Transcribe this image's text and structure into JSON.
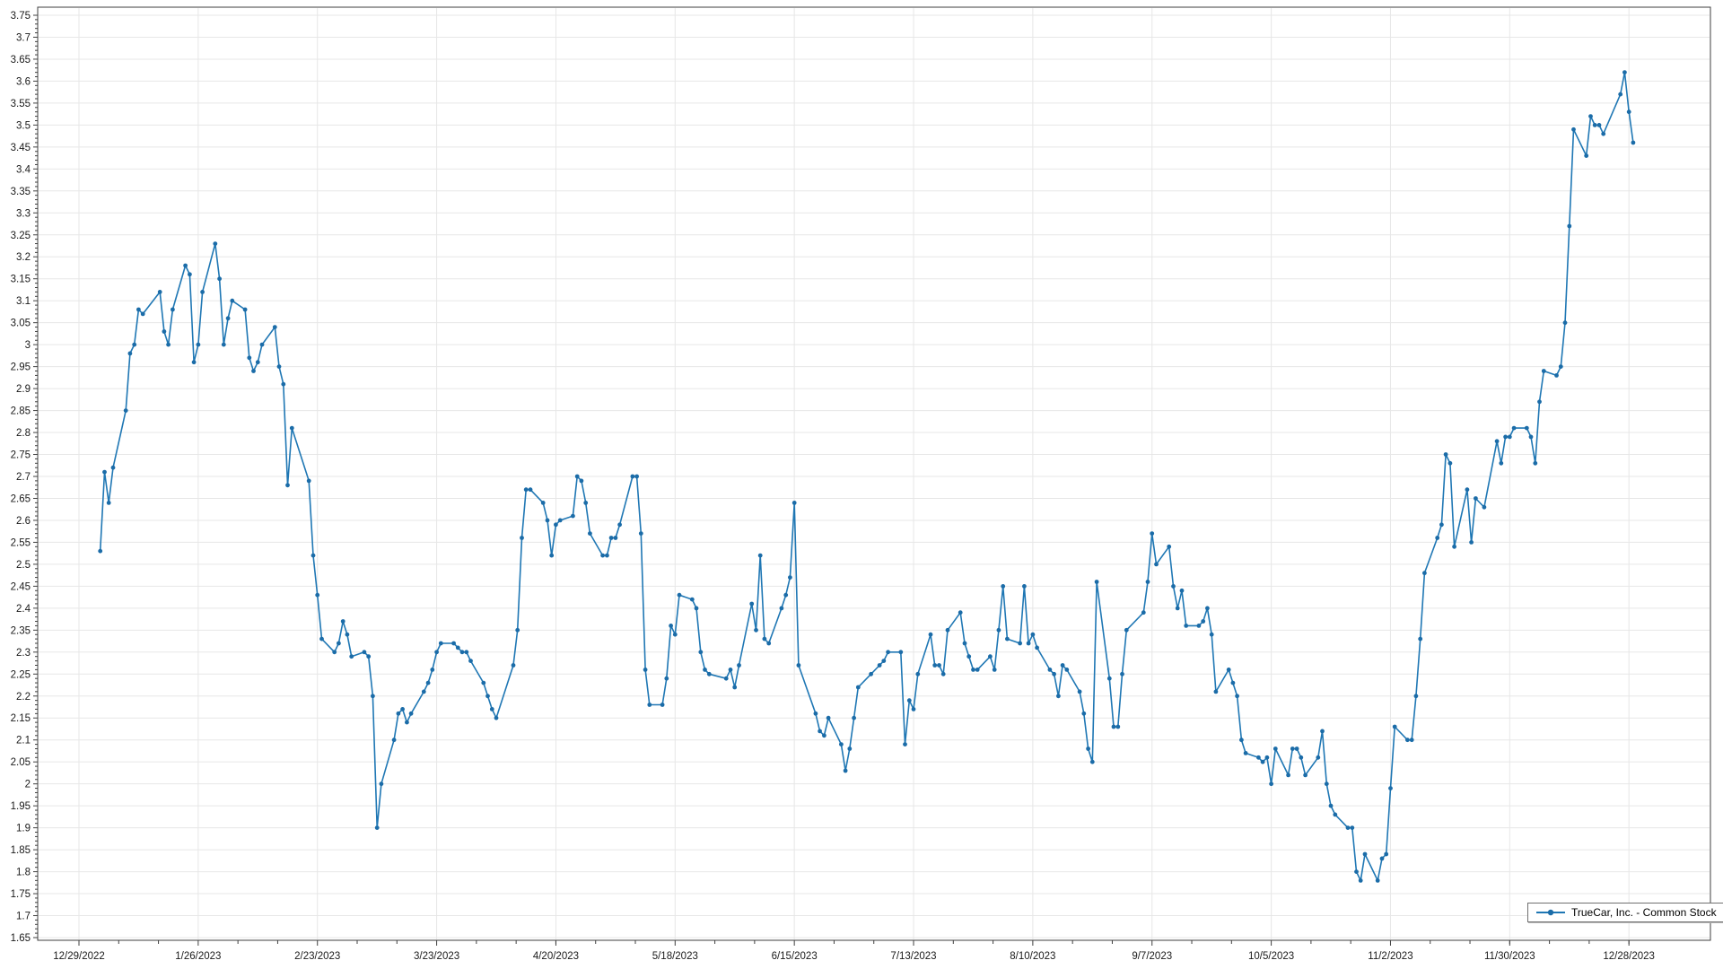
{
  "chart_data": {
    "type": "line",
    "title": "",
    "series_name": "TrueCar, Inc. - Common Stock",
    "legend_position": "bottom-right",
    "grid": true,
    "y_axis": {
      "min": 1.65,
      "max": 3.75,
      "major_step": 0.05,
      "minor_step": 0.01,
      "tick_labels": [
        "3.75",
        "3.7",
        "3.65",
        "3.6",
        "3.55",
        "3.5",
        "3.45",
        "3.4",
        "3.35",
        "3.3",
        "3.25",
        "3.2",
        "3.15",
        "3.1",
        "3.05",
        "3",
        "2.95",
        "2.9",
        "2.85",
        "2.8",
        "2.75",
        "2.7",
        "2.65",
        "2.6",
        "2.55",
        "2.5",
        "2.45",
        "2.4",
        "2.35",
        "2.3",
        "2.25",
        "2.2",
        "2.15",
        "2.1",
        "2.05",
        "2",
        "1.95",
        "1.9",
        "1.85",
        "1.8",
        "1.75",
        "1.7",
        "1.65"
      ]
    },
    "x_axis": {
      "unit": "days since 12/29/2022, weekdays only plotted",
      "ticks": [
        {
          "day": 0,
          "label": "12/29/2022"
        },
        {
          "day": 28,
          "label": "1/26/2023"
        },
        {
          "day": 56,
          "label": "2/23/2023"
        },
        {
          "day": 84,
          "label": "3/23/2023"
        },
        {
          "day": 112,
          "label": "4/20/2023"
        },
        {
          "day": 140,
          "label": "5/18/2023"
        },
        {
          "day": 168,
          "label": "6/15/2023"
        },
        {
          "day": 196,
          "label": "7/13/2023"
        },
        {
          "day": 224,
          "label": "8/10/2023"
        },
        {
          "day": 252,
          "label": "9/7/2023"
        },
        {
          "day": 280,
          "label": "10/5/2023"
        },
        {
          "day": 308,
          "label": "11/2/2023"
        },
        {
          "day": 336,
          "label": "11/30/2023"
        },
        {
          "day": 364,
          "label": "12/28/2023"
        }
      ]
    },
    "points": {
      "days": [
        5,
        6,
        7,
        8,
        11,
        12,
        13,
        14,
        15,
        19,
        20,
        21,
        22,
        25,
        26,
        27,
        28,
        29,
        32,
        33,
        34,
        35,
        36,
        39,
        40,
        41,
        42,
        43,
        46,
        47,
        48,
        49,
        50,
        54,
        55,
        56,
        57,
        60,
        61,
        62,
        63,
        64,
        67,
        68,
        69,
        70,
        71,
        74,
        75,
        76,
        77,
        78,
        81,
        82,
        83,
        84,
        85,
        88,
        89,
        90,
        91,
        92,
        95,
        96,
        97,
        98,
        102,
        103,
        104,
        105,
        106,
        109,
        110,
        111,
        112,
        113,
        116,
        117,
        118,
        119,
        120,
        123,
        124,
        125,
        126,
        127,
        130,
        131,
        132,
        133,
        134,
        137,
        138,
        139,
        140,
        141,
        144,
        145,
        146,
        147,
        148,
        152,
        153,
        154,
        155,
        158,
        159,
        160,
        161,
        162,
        165,
        166,
        167,
        168,
        169,
        173,
        174,
        175,
        176,
        179,
        180,
        181,
        182,
        183,
        186,
        188,
        189,
        190,
        193,
        194,
        195,
        196,
        197,
        200,
        201,
        202,
        203,
        204,
        207,
        208,
        209,
        210,
        211,
        214,
        215,
        216,
        217,
        218,
        221,
        222,
        223,
        224,
        225,
        228,
        229,
        230,
        231,
        232,
        235,
        236,
        237,
        238,
        239,
        242,
        243,
        244,
        245,
        246,
        250,
        251,
        252,
        253,
        256,
        257,
        258,
        259,
        260,
        263,
        264,
        265,
        266,
        267,
        270,
        271,
        272,
        273,
        274,
        277,
        278,
        279,
        280,
        281,
        284,
        285,
        286,
        287,
        288,
        291,
        292,
        293,
        294,
        295,
        298,
        299,
        300,
        301,
        302,
        305,
        306,
        307,
        308,
        309,
        312,
        313,
        314,
        315,
        316,
        319,
        320,
        321,
        322,
        323,
        326,
        327,
        328,
        330,
        333,
        334,
        335,
        336,
        337,
        340,
        341,
        342,
        343,
        344,
        347,
        348,
        349,
        350,
        351,
        354,
        355,
        356,
        357,
        358,
        362,
        363,
        364,
        365
      ],
      "values": [
        2.53,
        2.71,
        2.64,
        2.72,
        2.85,
        2.98,
        3.0,
        3.08,
        3.07,
        3.12,
        3.03,
        3.0,
        3.08,
        3.18,
        3.16,
        2.96,
        3.0,
        3.12,
        3.23,
        3.15,
        3.0,
        3.06,
        3.1,
        3.08,
        2.97,
        2.94,
        2.96,
        3.0,
        3.04,
        2.95,
        2.91,
        2.68,
        2.81,
        2.69,
        2.52,
        2.43,
        2.33,
        2.3,
        2.32,
        2.37,
        2.34,
        2.29,
        2.3,
        2.29,
        2.2,
        1.9,
        2.0,
        2.1,
        2.16,
        2.17,
        2.14,
        2.16,
        2.21,
        2.23,
        2.26,
        2.3,
        2.32,
        2.32,
        2.31,
        2.3,
        2.3,
        2.28,
        2.23,
        2.2,
        2.17,
        2.15,
        2.27,
        2.35,
        2.56,
        2.67,
        2.67,
        2.64,
        2.6,
        2.52,
        2.59,
        2.6,
        2.61,
        2.7,
        2.69,
        2.64,
        2.57,
        2.52,
        2.52,
        2.56,
        2.56,
        2.59,
        2.7,
        2.7,
        2.57,
        2.26,
        2.18,
        2.18,
        2.24,
        2.36,
        2.34,
        2.43,
        2.42,
        2.4,
        2.3,
        2.26,
        2.25,
        2.24,
        2.26,
        2.22,
        2.27,
        2.41,
        2.35,
        2.52,
        2.33,
        2.32,
        2.4,
        2.43,
        2.47,
        2.64,
        2.27,
        2.16,
        2.12,
        2.11,
        2.15,
        2.09,
        2.03,
        2.08,
        2.15,
        2.22,
        2.25,
        2.27,
        2.28,
        2.3,
        2.3,
        2.09,
        2.19,
        2.17,
        2.25,
        2.34,
        2.27,
        2.27,
        2.25,
        2.35,
        2.39,
        2.32,
        2.29,
        2.26,
        2.26,
        2.29,
        2.26,
        2.35,
        2.45,
        2.33,
        2.32,
        2.45,
        2.32,
        2.34,
        2.31,
        2.26,
        2.25,
        2.2,
        2.27,
        2.26,
        2.21,
        2.16,
        2.08,
        2.05,
        2.46,
        2.24,
        2.13,
        2.13,
        2.25,
        2.35,
        2.39,
        2.46,
        2.57,
        2.5,
        2.54,
        2.45,
        2.4,
        2.44,
        2.36,
        2.36,
        2.37,
        2.4,
        2.34,
        2.21,
        2.26,
        2.23,
        2.2,
        2.1,
        2.07,
        2.06,
        2.05,
        2.06,
        2.0,
        2.08,
        2.02,
        2.08,
        2.08,
        2.06,
        2.02,
        2.06,
        2.12,
        2.0,
        1.95,
        1.93,
        1.9,
        1.9,
        1.8,
        1.78,
        1.84,
        1.78,
        1.83,
        1.84,
        1.99,
        2.13,
        2.1,
        2.1,
        2.2,
        2.33,
        2.48,
        2.56,
        2.59,
        2.75,
        2.73,
        2.54,
        2.67,
        2.55,
        2.65,
        2.63,
        2.78,
        2.73,
        2.79,
        2.79,
        2.81,
        2.81,
        2.79,
        2.73,
        2.87,
        2.94,
        2.93,
        2.95,
        3.05,
        3.27,
        3.49,
        3.43,
        3.52,
        3.5,
        3.5,
        3.48,
        3.57,
        3.62,
        3.53,
        3.46
      ]
    },
    "colors": {
      "line": "#1f77b4",
      "marker": "#1b6ca8",
      "grid": "#e7e7e7",
      "axis": "#3f3f3f",
      "text": "#1a1a1a",
      "legend_border": "#6f6f6f",
      "background": "#ffffff"
    }
  }
}
